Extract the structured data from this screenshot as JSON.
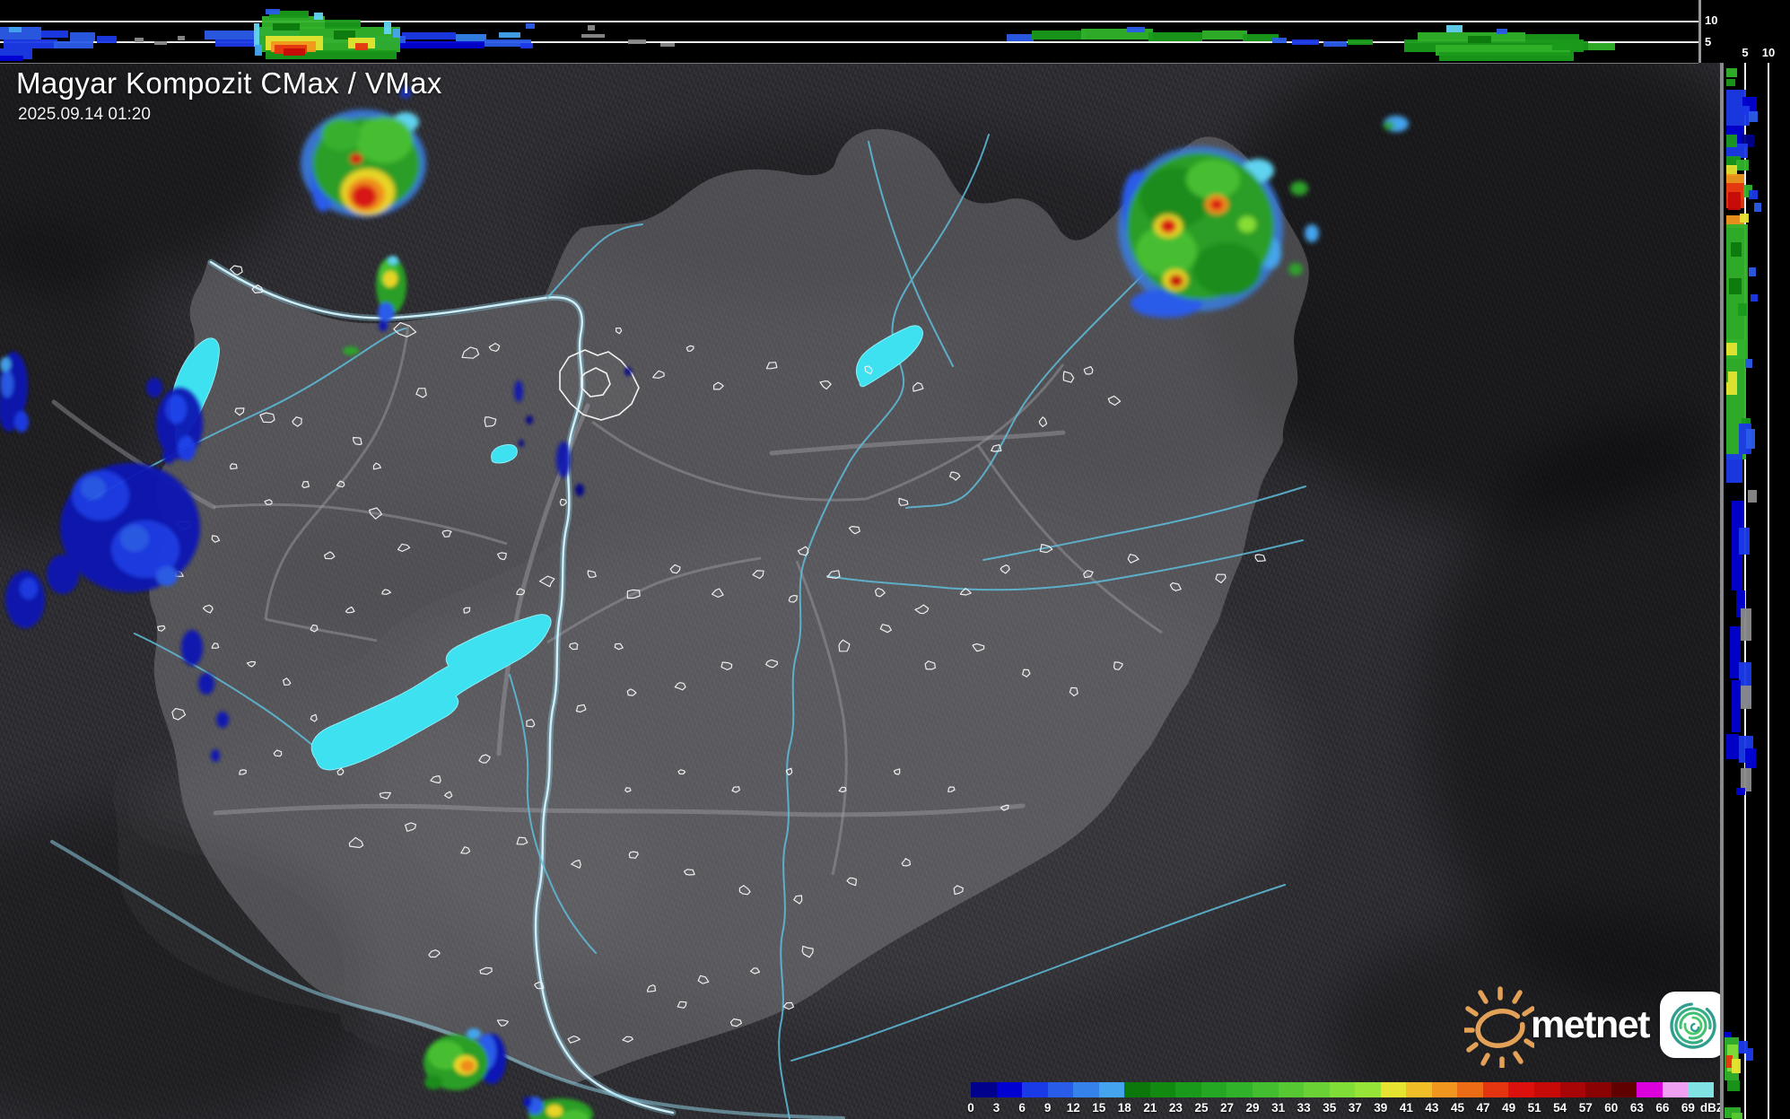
{
  "header": {
    "title": "Magyar Kompozit CMax / VMax",
    "timestamp": "2025.09.14 01:20"
  },
  "branding": {
    "logo_text": "metnet"
  },
  "profile_axes": {
    "top_strip": {
      "labels": [
        "10",
        "5"
      ]
    },
    "right_strip": {
      "labels": [
        "5",
        "10"
      ]
    }
  },
  "colorbar": {
    "unit": "dBZ",
    "ticks": [
      "0",
      "3",
      "6",
      "9",
      "12",
      "15",
      "18",
      "21",
      "23",
      "25",
      "27",
      "29",
      "31",
      "33",
      "35",
      "37",
      "39",
      "41",
      "43",
      "45",
      "47",
      "49",
      "51",
      "54",
      "57",
      "60",
      "63",
      "66",
      "69"
    ],
    "colors": [
      "#00008C",
      "#0000D2",
      "#1A3AE8",
      "#2A5CEA",
      "#3482EA",
      "#44A4EE",
      "#0C780C",
      "#128A12",
      "#1A9A1A",
      "#24A824",
      "#30B22A",
      "#42BE2E",
      "#56C832",
      "#6AD234",
      "#80DC36",
      "#96E438",
      "#E6E430",
      "#F0BE26",
      "#F0961E",
      "#EC6C16",
      "#E43410",
      "#DC100C",
      "#C60A08",
      "#A80606",
      "#8A0202",
      "#600000",
      "#DC00DC",
      "#F0A0F0",
      "#80E2E2"
    ]
  }
}
